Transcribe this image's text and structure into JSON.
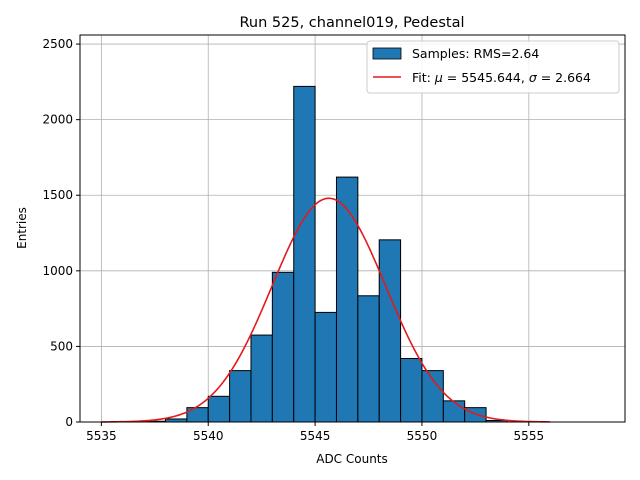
{
  "chart_data": {
    "type": "bar",
    "title": "Run 525, channel019, Pedestal",
    "xlabel": "ADC Counts",
    "ylabel": "Entries",
    "xlim": [
      5534,
      5559.5
    ],
    "ylim": [
      0,
      2560
    ],
    "xticks": [
      5535,
      5540,
      5545,
      5550,
      5555
    ],
    "yticks": [
      0,
      500,
      1000,
      1500,
      2000,
      2500
    ],
    "grid": true,
    "legend_position": "top-right",
    "histogram": {
      "name": "Samples: RMS=2.64",
      "color": "#1f77b4",
      "bin_edges": [
        5537,
        5538,
        5539,
        5540,
        5541,
        5542,
        5543,
        5544,
        5545,
        5546,
        5547,
        5548,
        5549,
        5550,
        5551,
        5552,
        5553,
        5554
      ],
      "values": [
        5,
        20,
        95,
        170,
        340,
        575,
        990,
        2220,
        725,
        1620,
        835,
        1205,
        420,
        340,
        140,
        95,
        10
      ]
    },
    "fit": {
      "name_prefix": "Fit: ",
      "mu_symbol": "μ",
      "mu_text": " = 5545.644, ",
      "sigma_symbol": "σ",
      "sigma_text": " = 2.664",
      "color": "#e31a1c",
      "mu": 5545.644,
      "sigma": 2.664,
      "peak": 1480,
      "x_range": [
        5535,
        5556
      ]
    }
  }
}
